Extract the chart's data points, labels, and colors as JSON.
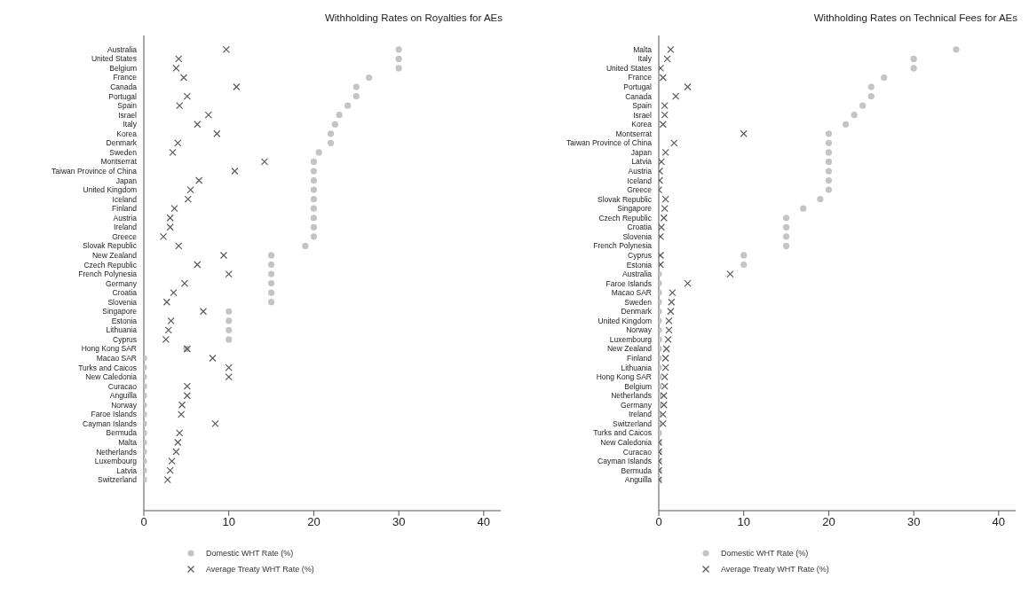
{
  "chart_data": [
    {
      "type": "scatter",
      "title": "Withholding Rates on Royalties for AEs",
      "orientation": "horizontal",
      "grid": false,
      "legend": "bottom",
      "xlim": [
        0,
        42
      ],
      "xticks": [
        0,
        10,
        20,
        30,
        40
      ],
      "categories": [
        "Australia",
        "United States",
        "Belgium",
        "France",
        "Canada",
        "Portugal",
        "Spain",
        "Israel",
        "Italy",
        "Korea",
        "Denmark",
        "Sweden",
        "Montserrat",
        "Taiwan Province of China",
        "Japan",
        "United Kingdom",
        "Iceland",
        "Finland",
        "Austria",
        "Ireland",
        "Greece",
        "Slovak Republic",
        "New Zealand",
        "Czech Republic",
        "French Polynesia",
        "Germany",
        "Croatia",
        "Slovenia",
        "Singapore",
        "Estonia",
        "Lithuania",
        "Cyprus",
        "Hong Kong SAR",
        "Macao SAR",
        "Turks and Caicos",
        "New Caledonia",
        "Curacao",
        "Anguilla",
        "Norway",
        "Faroe Islands",
        "Cayman Islands",
        "Bermuda",
        "Malta",
        "Netherlands",
        "Luxembourg",
        "Latvia",
        "Switzerland"
      ],
      "series": [
        {
          "name": "Domestic WHT Rate (%)",
          "color": "#c4c4c4",
          "marker": "circle",
          "values": [
            30,
            30,
            30,
            26.5,
            25,
            25,
            24,
            23,
            22.5,
            22,
            22,
            20.6,
            20,
            20,
            20,
            20,
            20,
            20,
            20,
            20,
            20,
            19,
            15,
            15,
            15,
            15,
            15,
            15,
            10,
            10,
            10,
            10,
            5,
            0,
            0,
            0,
            0,
            0,
            0,
            0,
            0,
            0,
            0,
            0,
            0,
            0,
            0
          ]
        },
        {
          "name": "Average Treaty WHT Rate (%)",
          "color": "#5a5a5a",
          "marker": "cross",
          "values": [
            9.7,
            4.1,
            3.8,
            4.7,
            10.9,
            5.1,
            4.2,
            7.6,
            6.3,
            8.6,
            4.0,
            3.4,
            14.2,
            10.7,
            6.5,
            5.5,
            5.2,
            3.6,
            3.1,
            3.1,
            2.3,
            4.1,
            9.4,
            6.3,
            10.0,
            4.8,
            3.5,
            2.7,
            7.0,
            3.2,
            2.9,
            2.6,
            5.1,
            8.1,
            10,
            10,
            5.1,
            5.1,
            4.5,
            4.4,
            8.4,
            4.2,
            4.0,
            3.8,
            3.3,
            3.1,
            2.8
          ]
        }
      ]
    },
    {
      "type": "scatter",
      "title": "Withholding Rates on Technical Fees for AEs",
      "orientation": "horizontal",
      "grid": false,
      "legend": "bottom",
      "xlim": [
        0,
        42
      ],
      "xticks": [
        0,
        10,
        20,
        30,
        40
      ],
      "categories": [
        "Malta",
        "Italy",
        "United States",
        "France",
        "Portugal",
        "Canada",
        "Spain",
        "Israel",
        "Korea",
        "Montserrat",
        "Taiwan Province of China",
        "Japan",
        "Latvia",
        "Austria",
        "Iceland",
        "Greece",
        "Slovak Republic",
        "Singapore",
        "Czech Republic",
        "Croatia",
        "Slovenia",
        "French Polynesia",
        "Cyprus",
        "Estonia",
        "Australia",
        "Faroe Islands",
        "Macao SAR",
        "Sweden",
        "Denmark",
        "United Kingdom",
        "Norway",
        "Luxembourg",
        "New Zealand",
        "Finland",
        "Lithuania",
        "Hong Kong SAR",
        "Belgium",
        "Netherlands",
        "Germany",
        "Ireland",
        "Switzerland",
        "Turks and Caicos",
        "New Caledonia",
        "Curacao",
        "Cayman Islands",
        "Bermuda",
        "Anguilla"
      ],
      "series": [
        {
          "name": "Domestic WHT Rate (%)",
          "color": "#c4c4c4",
          "marker": "circle",
          "values": [
            35,
            30,
            30,
            26.5,
            25,
            25,
            24,
            23,
            22,
            20,
            20,
            20,
            20,
            20,
            20,
            20,
            19,
            17,
            15,
            15,
            15,
            15,
            10,
            10,
            0,
            0,
            0,
            0,
            0,
            0,
            0,
            0,
            0,
            0,
            0,
            0,
            0,
            0,
            0,
            0,
            0,
            0,
            0,
            0,
            0,
            0,
            0
          ]
        },
        {
          "name": "Average Treaty WHT Rate (%)",
          "color": "#5a5a5a",
          "marker": "cross",
          "values": [
            1.4,
            1.0,
            0.2,
            0.5,
            3.4,
            2.0,
            0.7,
            0.7,
            0.5,
            10.0,
            1.8,
            0.8,
            0.3,
            0.1,
            0.1,
            0,
            0.8,
            0.7,
            0.6,
            0.3,
            0.2,
            null,
            0.2,
            0.2,
            8.4,
            3.4,
            1.6,
            1.5,
            1.4,
            1.2,
            1.2,
            1.1,
            0.9,
            0.8,
            0.8,
            0.7,
            0.7,
            0.6,
            0.6,
            0.5,
            0.5,
            null,
            0,
            0,
            0,
            0,
            0
          ]
        }
      ]
    }
  ]
}
